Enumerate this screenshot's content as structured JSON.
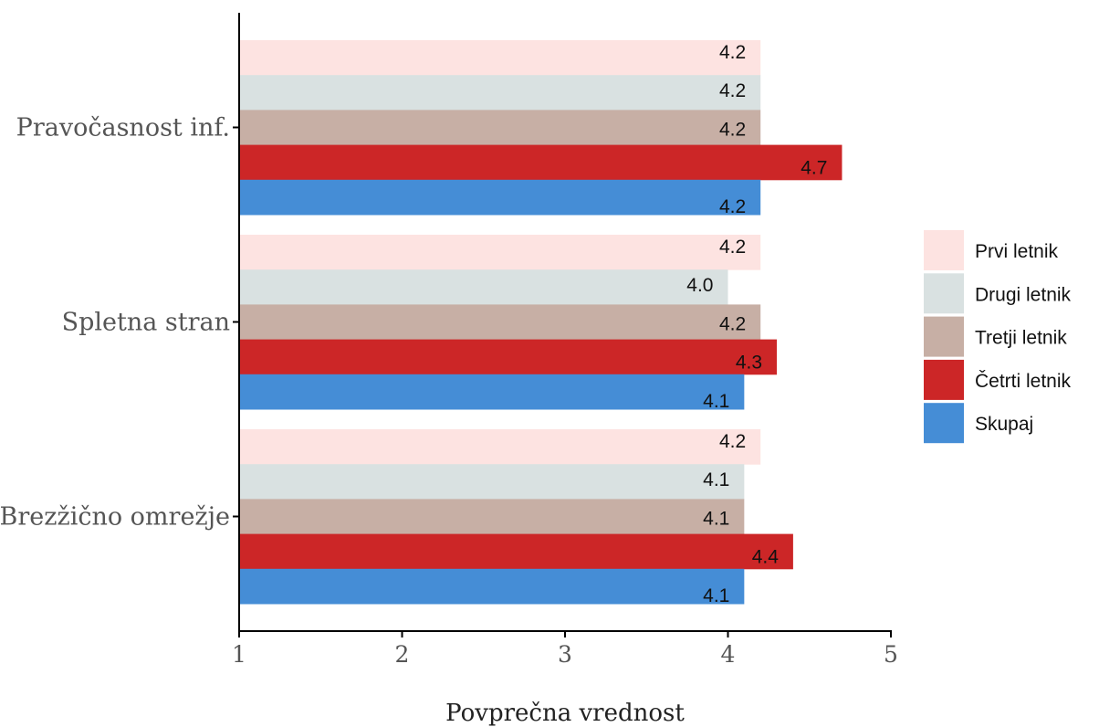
{
  "chart_data": {
    "type": "bar",
    "orientation": "horizontal",
    "categories": [
      "Pravočasnost inf.",
      "Spletna stran",
      "Brezžično omrežje"
    ],
    "series": [
      {
        "name": "Prvi letnik",
        "color": "#FDE3E1",
        "values": [
          4.2,
          4.2,
          4.2
        ],
        "labels": [
          "4.2",
          "4.2",
          "4.2"
        ]
      },
      {
        "name": "Drugi letnik",
        "color": "#D9E1E1",
        "values": [
          4.2,
          4.0,
          4.1
        ],
        "labels": [
          "4.2",
          "4.0",
          "4.1"
        ]
      },
      {
        "name": "Tretji letnik",
        "color": "#C7AFA5",
        "values": [
          4.2,
          4.2,
          4.1
        ],
        "labels": [
          "4.2",
          "4.2",
          "4.1"
        ]
      },
      {
        "name": "Četrti letnik",
        "color": "#CC2627",
        "values": [
          4.7,
          4.3,
          4.4
        ],
        "labels": [
          "4.7",
          "4.3",
          "4.4"
        ]
      },
      {
        "name": "Skupaj",
        "color": "#458DD6",
        "values": [
          4.2,
          4.1,
          4.1
        ],
        "labels": [
          "4.2",
          "4.1",
          "4.1"
        ]
      }
    ],
    "xlim": [
      1,
      5
    ],
    "xticks": [
      "1",
      "2",
      "3",
      "4",
      "5"
    ],
    "xlabel": "Povprečna vrednost",
    "ylabel": "",
    "title": "",
    "grid": false,
    "legend_position": "right"
  }
}
